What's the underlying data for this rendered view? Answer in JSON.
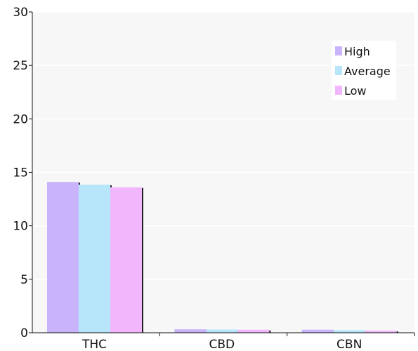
{
  "chart_data": {
    "type": "bar",
    "categories": [
      "THC",
      "CBD",
      "CBN"
    ],
    "series": [
      {
        "name": "High",
        "color": "#c9b3fa",
        "values": [
          14.1,
          0.32,
          0.28
        ]
      },
      {
        "name": "Average",
        "color": "#b7e6fb",
        "values": [
          13.85,
          0.3,
          0.24
        ]
      },
      {
        "name": "Low",
        "color": "#f1b6fb",
        "values": [
          13.6,
          0.28,
          0.2
        ]
      }
    ],
    "ylim": [
      0,
      30
    ],
    "yticks": [
      0,
      5,
      10,
      15,
      20,
      25,
      30
    ],
    "grid": true,
    "legend_position": "top-right",
    "colors": {
      "plot_background": "#f7f7f8",
      "gridline": "#ffffff",
      "axis": "#111111"
    }
  }
}
